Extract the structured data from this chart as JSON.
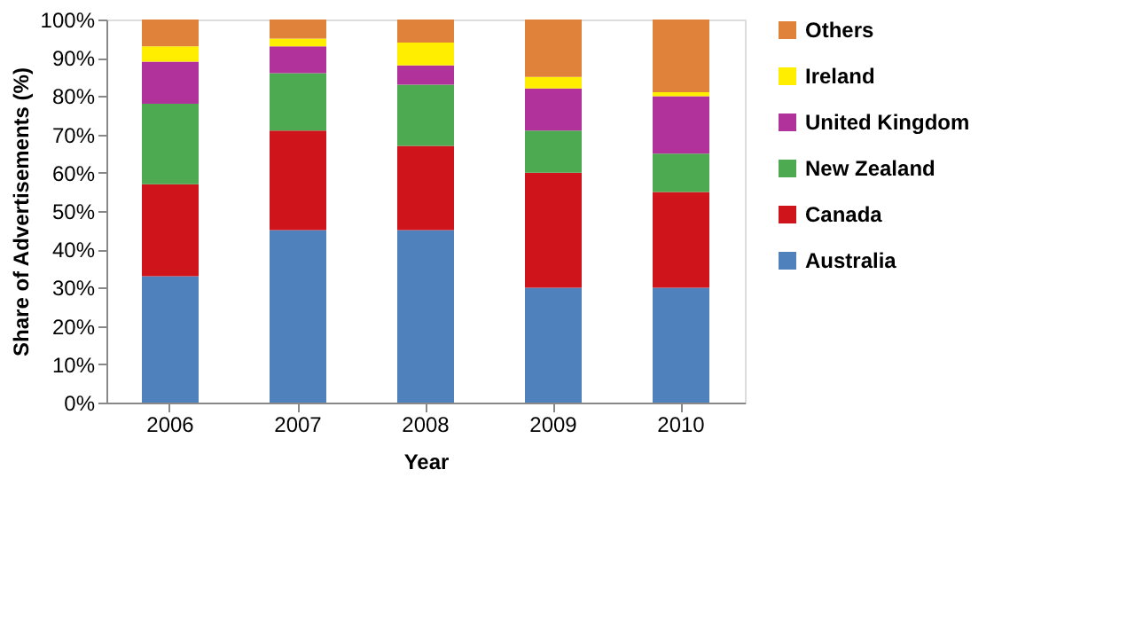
{
  "chart_data": {
    "type": "bar",
    "stacked": true,
    "xlabel": "Year",
    "ylabel": "Share of Advertisements (%)",
    "categories": [
      "2006",
      "2007",
      "2008",
      "2009",
      "2010"
    ],
    "series": [
      {
        "name": "Australia",
        "color": "#4f81bd",
        "values": [
          33,
          45,
          45,
          30,
          30
        ]
      },
      {
        "name": "Canada",
        "color": "#d0141c",
        "values": [
          24,
          26,
          22,
          30,
          25
        ]
      },
      {
        "name": "New Zealand",
        "color": "#4daa50",
        "values": [
          21,
          15,
          16,
          11,
          10
        ]
      },
      {
        "name": "United Kingdom",
        "color": "#b0329a",
        "values": [
          11,
          7,
          5,
          11,
          15
        ]
      },
      {
        "name": "Ireland",
        "color": "#ffee00",
        "values": [
          4,
          2,
          6,
          3,
          1
        ]
      },
      {
        "name": "Others",
        "color": "#e0823a",
        "values": [
          7,
          5,
          6,
          15,
          19
        ]
      }
    ],
    "ylim": [
      0,
      100
    ],
    "yticks": [
      {
        "value": 0,
        "label": "0%"
      },
      {
        "value": 10,
        "label": "10%"
      },
      {
        "value": 20,
        "label": "20%"
      },
      {
        "value": 30,
        "label": "30%"
      },
      {
        "value": 40,
        "label": "40%"
      },
      {
        "value": 50,
        "label": "50%"
      },
      {
        "value": 60,
        "label": "60%"
      },
      {
        "value": 70,
        "label": "70%"
      },
      {
        "value": 80,
        "label": "80%"
      },
      {
        "value": 90,
        "label": "90%"
      },
      {
        "value": 100,
        "label": "100%"
      }
    ],
    "grid": false,
    "legend": "right"
  }
}
